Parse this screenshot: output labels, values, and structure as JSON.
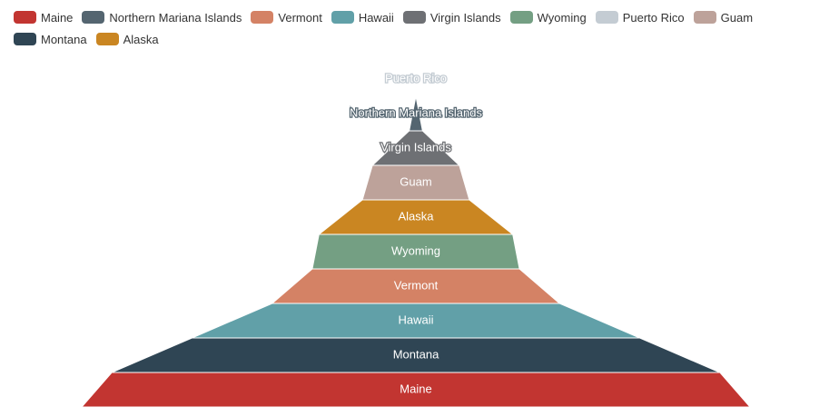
{
  "chart_data": {
    "type": "funnel",
    "sort": "ascending",
    "categories": [
      "Maine",
      "Northern Mariana Islands",
      "Vermont",
      "Hawaii",
      "Virgin Islands",
      "Wyoming",
      "Puerto Rico",
      "Guam",
      "Montana",
      "Alaska"
    ],
    "values": [
      100,
      2,
      43,
      67,
      13,
      31,
      0,
      16,
      91,
      29
    ],
    "colors": [
      "#c23531",
      "#546570",
      "#d48265",
      "#61a0a8",
      "#6e7074",
      "#749f83",
      "#c4ccd3",
      "#bda29a",
      "#2f4554",
      "#ca8622"
    ]
  }
}
